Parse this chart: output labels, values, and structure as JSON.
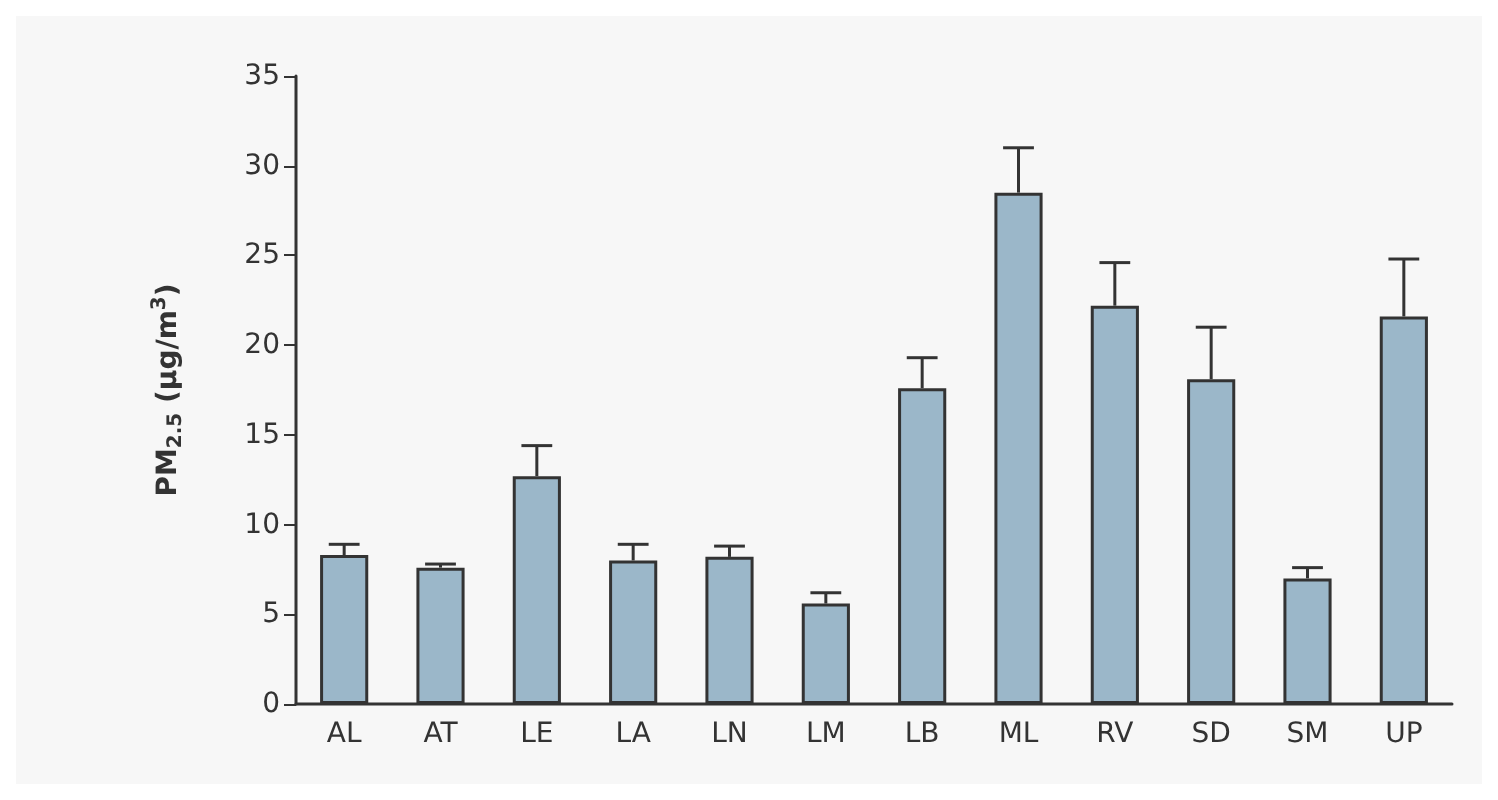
{
  "chart_data": {
    "type": "bar",
    "ylabel": "PM$_{2.5}$ (μg/m$^{3}$)",
    "categories": [
      "AL",
      "AT",
      "LE",
      "LA",
      "LN",
      "LM",
      "LB",
      "ML",
      "RV",
      "SD",
      "SM",
      "UP"
    ],
    "values": [
      8.3,
      7.6,
      12.7,
      8.0,
      8.2,
      5.6,
      17.6,
      28.5,
      22.2,
      18.1,
      7.0,
      21.6
    ],
    "errors": [
      [
        8.3,
        8.9
      ],
      [
        7.6,
        7.8
      ],
      [
        12.7,
        14.4
      ],
      [
        8.0,
        8.9
      ],
      [
        8.2,
        8.8
      ],
      [
        5.6,
        6.2
      ],
      [
        17.6,
        19.3
      ],
      [
        28.5,
        31.0
      ],
      [
        22.2,
        24.6
      ],
      [
        18.1,
        21.0
      ],
      [
        7.0,
        7.6
      ],
      [
        21.6,
        24.8
      ]
    ],
    "color": "#9bb7c9",
    "ylim": [
      0,
      35
    ],
    "yticks": [
      0,
      5,
      10,
      15,
      20,
      25,
      30,
      35
    ],
    "grid": false
  }
}
